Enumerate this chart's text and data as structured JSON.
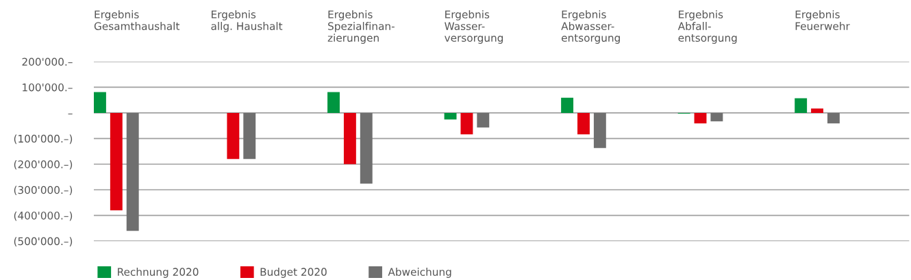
{
  "chart_data": {
    "type": "bar",
    "categories": [
      "Ergebnis\nGesamthaushalt",
      "Ergebnis\nallg. Haushalt",
      "Ergebnis\nSpezialfinan-\nzierungen",
      "Ergebnis\nWasser-\nversorgung",
      "Ergebnis\nAbwasser-\nentsorgung",
      "Ergebnis\nAbfall-\nentsorgung",
      "Ergebnis\nFeuerwehr"
    ],
    "series": [
      {
        "name": "Rechnung 2020",
        "color": "#009640",
        "values": [
          81000,
          0,
          81000,
          -26000,
          59000,
          -3000,
          57000
        ]
      },
      {
        "name": "Budget 2020",
        "color": "#e2000f",
        "values": [
          -380000,
          -180000,
          -200000,
          -84000,
          -84000,
          -41000,
          17000
        ]
      },
      {
        "name": "Abweichung",
        "color": "#6f6f6f",
        "values": [
          -460000,
          -180000,
          -276000,
          -57000,
          -137000,
          -33000,
          -41000
        ]
      }
    ],
    "ylim": [
      -500000,
      200000
    ],
    "yticks": [
      {
        "value": 200000,
        "label": "200'000.–"
      },
      {
        "value": 100000,
        "label": "100'000.–"
      },
      {
        "value": 0,
        "label": "–"
      },
      {
        "value": -100000,
        "label": "(100'000.–)"
      },
      {
        "value": -200000,
        "label": "(200'000.–)"
      },
      {
        "value": -300000,
        "label": "(300'000.–)"
      },
      {
        "value": -400000,
        "label": "(400'000.–)"
      },
      {
        "value": -500000,
        "label": "(500'000.–)"
      }
    ],
    "grid": "y",
    "legend": "bottom left"
  }
}
